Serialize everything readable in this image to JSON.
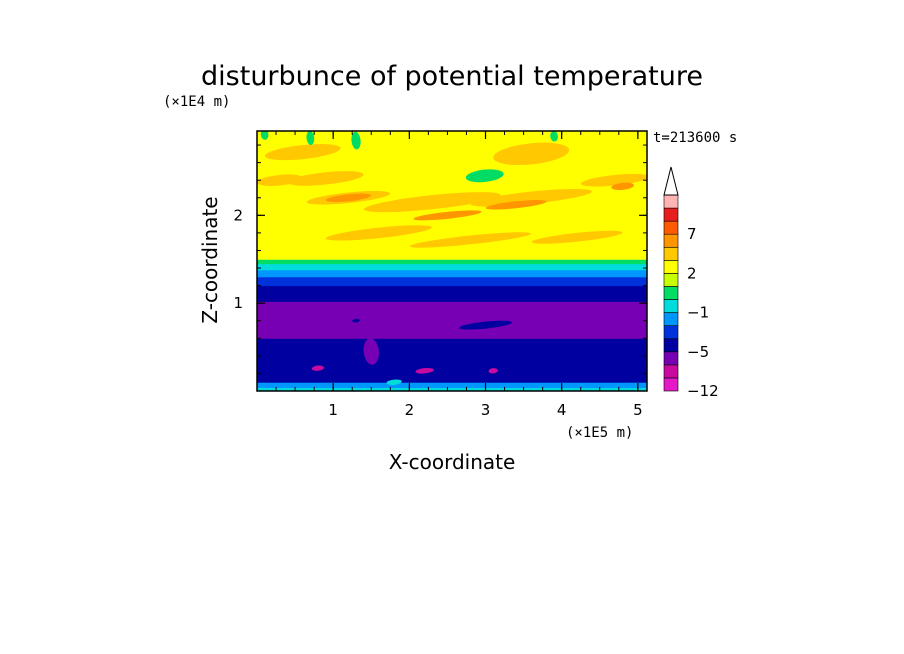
{
  "chart_data": {
    "type": "heatmap",
    "title": "disturbunce of potential temperature",
    "time_label": "t=213600 s",
    "xlabel": "X-coordinate",
    "ylabel": "Z-coordinate",
    "x_unit": "(×1E5 m)",
    "y_unit": "(×1E4 m)",
    "xlim": [
      0,
      5.12
    ],
    "ylim": [
      0,
      2.96
    ],
    "x_ticks": [
      1,
      2,
      3,
      4,
      5
    ],
    "y_ticks": [
      1,
      2
    ],
    "colorbar": {
      "levels": [
        -12,
        -11,
        -8,
        -5,
        -4,
        -3,
        -1,
        0,
        1,
        2,
        3,
        5,
        7,
        9,
        11
      ],
      "colors": [
        "#e619c8",
        "#c80aa0",
        "#7800b4",
        "#0000a0",
        "#0032dc",
        "#0096ff",
        "#00dcdc",
        "#00dc64",
        "#c8ff00",
        "#ffff00",
        "#ffc800",
        "#ff9600",
        "#ff5a00",
        "#e61e1e",
        "#ffb4b4"
      ],
      "labels": [
        {
          "value": -12,
          "text": "−12"
        },
        {
          "value": -5,
          "text": "−5"
        },
        {
          "value": -1,
          "text": "−1"
        },
        {
          "value": 2,
          "text": "2"
        },
        {
          "value": 7,
          "text": "7"
        }
      ],
      "extend": "max"
    },
    "bands": [
      {
        "z0": 0.0,
        "z1": 0.04,
        "level": 6
      },
      {
        "z0": 0.04,
        "z1": 0.1,
        "level": 5
      },
      {
        "z0": 0.1,
        "z1": 0.6,
        "level": 3
      },
      {
        "z0": 0.6,
        "z1": 1.02,
        "level": 2
      },
      {
        "z0": 1.02,
        "z1": 1.2,
        "level": 3
      },
      {
        "z0": 1.2,
        "z1": 1.3,
        "level": 4
      },
      {
        "z0": 1.3,
        "z1": 1.38,
        "level": 5
      },
      {
        "z0": 1.38,
        "z1": 1.45,
        "level": 6
      },
      {
        "z0": 1.45,
        "z1": 1.5,
        "level": 7
      },
      {
        "z0": 1.5,
        "z1": 2.96,
        "level": 9
      }
    ],
    "patches": [
      {
        "x": 0.3,
        "z": 2.4,
        "rx": 0.3,
        "rz": 0.06,
        "level": 10
      },
      {
        "x": 0.9,
        "z": 2.42,
        "rx": 0.5,
        "rz": 0.07,
        "level": 10
      },
      {
        "x": 1.2,
        "z": 2.2,
        "rx": 0.55,
        "rz": 0.06,
        "level": 10
      },
      {
        "x": 2.3,
        "z": 2.15,
        "rx": 0.9,
        "rz": 0.08,
        "level": 10
      },
      {
        "x": 3.6,
        "z": 2.2,
        "rx": 0.8,
        "rz": 0.07,
        "level": 10
      },
      {
        "x": 4.7,
        "z": 2.4,
        "rx": 0.45,
        "rz": 0.06,
        "level": 10
      },
      {
        "x": 1.6,
        "z": 1.8,
        "rx": 0.7,
        "rz": 0.06,
        "level": 10
      },
      {
        "x": 2.8,
        "z": 1.72,
        "rx": 0.8,
        "rz": 0.05,
        "level": 10
      },
      {
        "x": 4.2,
        "z": 1.75,
        "rx": 0.6,
        "rz": 0.05,
        "level": 10
      },
      {
        "x": 3.6,
        "z": 2.7,
        "rx": 0.5,
        "rz": 0.12,
        "level": 10
      },
      {
        "x": 0.6,
        "z": 2.72,
        "rx": 0.5,
        "rz": 0.08,
        "level": 10
      },
      {
        "x": 1.2,
        "z": 2.2,
        "rx": 0.3,
        "rz": 0.04,
        "level": 11
      },
      {
        "x": 2.5,
        "z": 2.0,
        "rx": 0.45,
        "rz": 0.04,
        "level": 11
      },
      {
        "x": 3.4,
        "z": 2.12,
        "rx": 0.4,
        "rz": 0.04,
        "level": 11
      },
      {
        "x": 4.8,
        "z": 2.33,
        "rx": 0.15,
        "rz": 0.04,
        "level": 11
      },
      {
        "x": 2.99,
        "z": 2.45,
        "rx": 0.25,
        "rz": 0.07,
        "level": 7
      },
      {
        "x": 0.1,
        "z": 2.92,
        "rx": 0.05,
        "rz": 0.06,
        "level": 7
      },
      {
        "x": 0.7,
        "z": 2.88,
        "rx": 0.05,
        "rz": 0.08,
        "level": 7
      },
      {
        "x": 1.3,
        "z": 2.85,
        "rx": 0.06,
        "rz": 0.1,
        "level": 7
      },
      {
        "x": 3.9,
        "z": 2.9,
        "rx": 0.05,
        "rz": 0.06,
        "level": 7
      },
      {
        "x": 3.0,
        "z": 0.75,
        "rx": 0.35,
        "rz": 0.04,
        "level": 3
      },
      {
        "x": 1.3,
        "z": 0.8,
        "rx": 0.05,
        "rz": 0.02,
        "level": 3
      },
      {
        "x": 1.5,
        "z": 0.45,
        "rx": 0.1,
        "rz": 0.15,
        "level": 2
      },
      {
        "x": 0.8,
        "z": 0.26,
        "rx": 0.08,
        "rz": 0.03,
        "level": 1
      },
      {
        "x": 2.2,
        "z": 0.23,
        "rx": 0.12,
        "rz": 0.03,
        "level": 1
      },
      {
        "x": 3.1,
        "z": 0.23,
        "rx": 0.06,
        "rz": 0.03,
        "level": 1
      },
      {
        "x": 1.8,
        "z": 0.1,
        "rx": 0.1,
        "rz": 0.03,
        "level": 6
      }
    ]
  }
}
